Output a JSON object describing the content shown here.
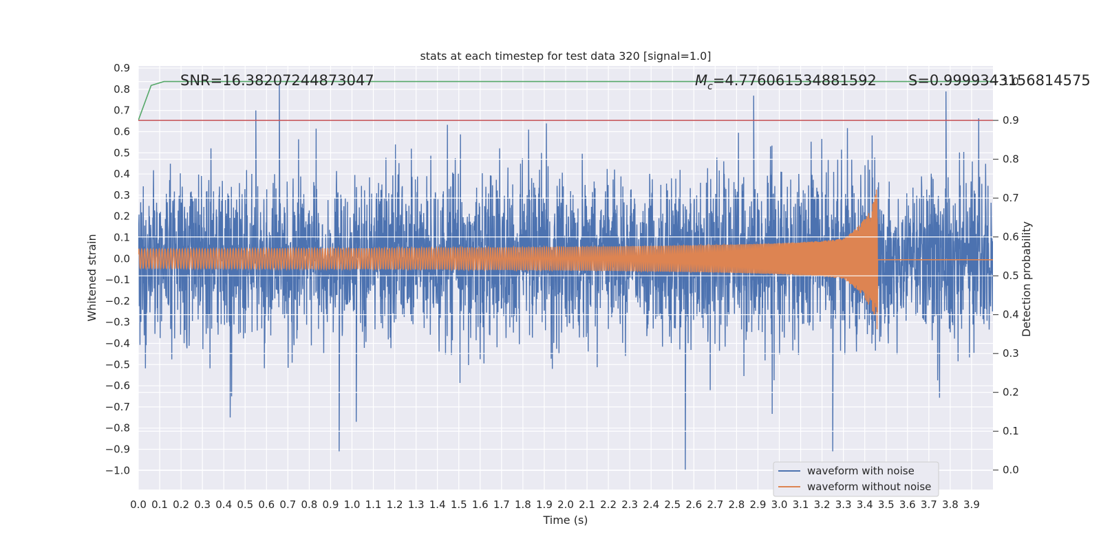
{
  "chart_data": {
    "type": "line",
    "title": "stats at each timestep for test data 320 [signal=1.0]",
    "xlabel": "Time (s)",
    "ylabel": "Whitened strain",
    "y2label": "Detection probability",
    "xlim": [
      0.0,
      4.0
    ],
    "ylim": [
      -1.09,
      0.91
    ],
    "y2lim": [
      -0.05,
      1.04
    ],
    "x_ticks": [
      0.0,
      0.1,
      0.2,
      0.3,
      0.4,
      0.5,
      0.6,
      0.7,
      0.8,
      0.9,
      1.0,
      1.1,
      1.2,
      1.3,
      1.4,
      1.5,
      1.6,
      1.7,
      1.8,
      1.9,
      2.0,
      2.1,
      2.2,
      2.3,
      2.4,
      2.5,
      2.6,
      2.7,
      2.8,
      2.9,
      3.0,
      3.1,
      3.2,
      3.3,
      3.4,
      3.5,
      3.6,
      3.7,
      3.8,
      3.9
    ],
    "x_tick_labels": [
      "0.0",
      "0.1",
      "0.2",
      "0.3",
      "0.4",
      "0.5",
      "0.6",
      "0.7",
      "0.8",
      "0.9",
      "1.0",
      "1.1",
      "1.2",
      "1.3",
      "1.4",
      "1.5",
      "1.6",
      "1.7",
      "1.8",
      "1.9",
      "2.0",
      "2.1",
      "2.2",
      "2.3",
      "2.4",
      "2.5",
      "2.6",
      "2.7",
      "2.8",
      "2.9",
      "3.0",
      "3.1",
      "3.2",
      "3.3",
      "3.4",
      "3.5",
      "3.6",
      "3.7",
      "3.8",
      "3.9"
    ],
    "y_ticks": [
      0.9,
      0.8,
      0.7,
      0.6,
      0.5,
      0.4,
      0.3,
      0.2,
      0.1,
      0.0,
      -0.1,
      -0.2,
      -0.3,
      -0.4,
      -0.5,
      -0.6,
      -0.7,
      -0.8,
      -0.9,
      -1.0
    ],
    "y_tick_labels": [
      "0.9",
      "0.8",
      "0.7",
      "0.6",
      "0.5",
      "0.4",
      "0.3",
      "0.2",
      "0.1",
      "0.0",
      "−0.1",
      "−0.2",
      "−0.3",
      "−0.4",
      "−0.5",
      "−0.6",
      "−0.7",
      "−0.8",
      "−0.9",
      "−1.0"
    ],
    "y2_ticks": [
      1.0,
      0.9,
      0.8,
      0.7,
      0.6,
      0.5,
      0.4,
      0.3,
      0.2,
      0.1,
      0.0
    ],
    "y2_tick_labels": [
      "1.0",
      "0.9",
      "0.8",
      "0.7",
      "0.6",
      "0.5",
      "0.4",
      "0.3",
      "0.2",
      "0.1",
      "0.0"
    ],
    "annotations": {
      "snr": "SNR=16.38207244873047",
      "mc_symbol": "M",
      "mc_sub": "c",
      "mc_value": "=4.776061534881592",
      "s": "S=0.9999343156814575"
    },
    "series": [
      {
        "name": "waveform with noise",
        "axis": "left",
        "color": "#4c72b0",
        "kind": "noise",
        "envelope_typical": 0.3,
        "notable_peaks": [
          {
            "x": 0.66,
            "y": 0.82
          },
          {
            "x": 0.55,
            "y": 0.7
          },
          {
            "x": 3.78,
            "y": 0.79
          },
          {
            "x": 2.88,
            "y": 0.77
          },
          {
            "x": 2.56,
            "y": -1.0
          },
          {
            "x": 0.94,
            "y": -0.91
          },
          {
            "x": 3.25,
            "y": -0.91
          },
          {
            "x": 1.02,
            "y": -0.77
          },
          {
            "x": 0.43,
            "y": -0.75
          }
        ]
      },
      {
        "name": "waveform without noise",
        "axis": "left",
        "color": "#dd8452",
        "kind": "chirp",
        "start_amplitude": 0.045,
        "peak_amplitude": 0.4,
        "merger_time": 3.46,
        "ringdown_value": -0.005
      },
      {
        "name": "detection probability",
        "axis": "right",
        "color": "#55a868",
        "points": [
          [
            0.0,
            0.9
          ],
          [
            0.06,
            0.99
          ],
          [
            0.12,
            1.0
          ],
          [
            4.0,
            1.0
          ]
        ]
      },
      {
        "name": "threshold",
        "axis": "right",
        "color": "#c44e52",
        "points": [
          [
            0.0,
            0.9
          ],
          [
            4.0,
            0.9
          ]
        ]
      }
    ],
    "legend": {
      "placement": "lower-right",
      "entries": [
        "waveform with noise",
        "waveform without noise"
      ]
    }
  }
}
